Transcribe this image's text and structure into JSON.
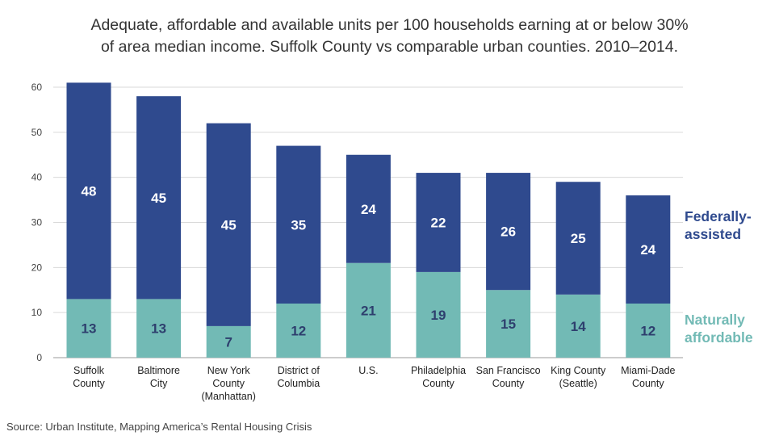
{
  "chart_data": {
    "type": "bar",
    "stacked": true,
    "title": "Adequate, affordable and available units per 100 households earning at or below 30% of area median income. Suffolk County vs comparable urban counties. 2010–2014.",
    "title_lines": [
      "Adequate, affordable and available units per 100 households earning at or below 30%",
      "of area median income. Suffolk County vs comparable urban counties. 2010–2014."
    ],
    "categories": [
      [
        "Suffolk",
        "County"
      ],
      [
        "Baltimore",
        "City"
      ],
      [
        "New York",
        "County",
        "(Manhattan)"
      ],
      [
        "District of",
        "Columbia"
      ],
      [
        "U.S."
      ],
      [
        "Philadelphia",
        "County"
      ],
      [
        "San Francisco",
        "County"
      ],
      [
        "King County",
        "(Seattle)"
      ],
      [
        "Miami-Dade",
        "County"
      ]
    ],
    "series": [
      {
        "name": "Naturally affordable",
        "legend_lines": [
          "Naturally",
          "affordable"
        ],
        "color": "#72bab5",
        "label_color": "#2e3f6e",
        "values": [
          13,
          13,
          7,
          12,
          21,
          19,
          15,
          14,
          12
        ]
      },
      {
        "name": "Federally-assisted",
        "legend_lines": [
          "Federally-",
          "assisted"
        ],
        "color": "#2f4a8e",
        "label_color": "#ffffff",
        "values": [
          48,
          45,
          45,
          35,
          24,
          22,
          26,
          25,
          24
        ]
      }
    ],
    "yticks": [
      0,
      10,
      20,
      30,
      40,
      50,
      60
    ],
    "ylim": [
      0,
      60
    ],
    "xlabel": "",
    "ylabel": "",
    "grid": true,
    "legend_position": "right"
  },
  "source": "Source: Urban Institute, Mapping America’s Rental Housing Crisis"
}
